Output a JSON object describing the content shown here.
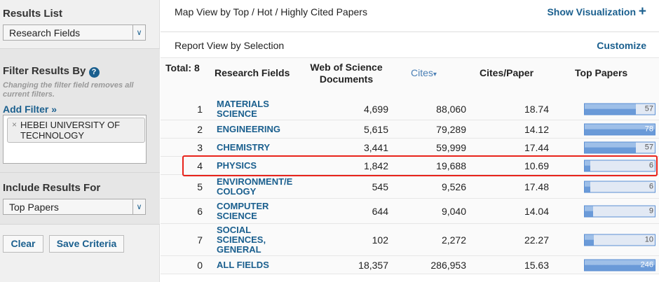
{
  "sidebar": {
    "results_list": {
      "label": "Results List",
      "value": "Research Fields"
    },
    "filter": {
      "label": "Filter Results By",
      "help": "?",
      "note": "Changing the filter field removes all current filters.",
      "add": "Add Filter »",
      "chip": "HEBEI UNIVERSITY OF TECHNOLOGY",
      "chip_remove": "×"
    },
    "include": {
      "label": "Include Results For",
      "value": "Top Papers"
    },
    "clear": "Clear",
    "save": "Save Criteria"
  },
  "header": {
    "title": "Map View by Top / Hot / Highly Cited Papers",
    "show_vis": "Show Visualization",
    "plus": "+",
    "report": "Report View by Selection",
    "customize": "Customize"
  },
  "table": {
    "total": "Total: 8",
    "columns": [
      "Research Fields",
      "Web of Science Documents",
      "Cites",
      "Cites/Paper",
      "Top Papers"
    ],
    "sort_indicator": "▾",
    "rows": [
      {
        "rank": "1",
        "field": "MATERIALS SCIENCE",
        "docs": "4,699",
        "cites": "88,060",
        "cpp": "18.74",
        "top": 57
      },
      {
        "rank": "2",
        "field": "ENGINEERING",
        "docs": "5,615",
        "cites": "79,289",
        "cpp": "14.12",
        "top": 78
      },
      {
        "rank": "3",
        "field": "CHEMISTRY",
        "docs": "3,441",
        "cites": "59,999",
        "cpp": "17.44",
        "top": 57
      },
      {
        "rank": "4",
        "field": "PHYSICS",
        "docs": "1,842",
        "cites": "19,688",
        "cpp": "10.69",
        "top": 6,
        "highlighted": true
      },
      {
        "rank": "5",
        "field": "ENVIRONMENT/E COLOGY",
        "docs": "545",
        "cites": "9,526",
        "cpp": "17.48",
        "top": 6
      },
      {
        "rank": "6",
        "field": "COMPUTER SCIENCE",
        "docs": "644",
        "cites": "9,040",
        "cpp": "14.04",
        "top": 9
      },
      {
        "rank": "7",
        "field": "SOCIAL SCIENCES, GENERAL",
        "docs": "102",
        "cites": "2,272",
        "cpp": "22.27",
        "top": 10
      },
      {
        "rank": "0",
        "field": "ALL FIELDS",
        "docs": "18,357",
        "cites": "286,953",
        "cpp": "15.63",
        "top": 246
      }
    ]
  },
  "colors": {
    "link": "#1a5f8e",
    "highlight": "#e8231b",
    "bar": "#6a9ad8"
  }
}
